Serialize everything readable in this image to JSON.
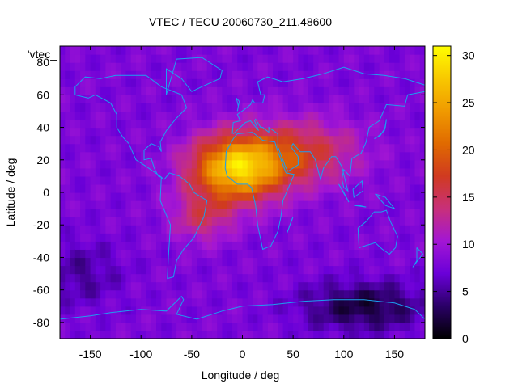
{
  "chart_data": {
    "type": "heatmap",
    "title": "VTEC / TECU 20060730_211.48600",
    "xlabel": "Longitude / deg",
    "ylabel": "Latitude / deg",
    "xlim": [
      -180,
      180
    ],
    "ylim": [
      -90,
      90
    ],
    "x_ticks": [
      -150,
      -100,
      -50,
      0,
      50,
      100,
      150
    ],
    "y_ticks": [
      60,
      40,
      20,
      0,
      -20,
      -40,
      -60,
      -80
    ],
    "y_ticks_note": "top tick '80' overprinted by key text",
    "y_top_tick_label": "80",
    "colorbar": {
      "range": [
        0,
        31
      ],
      "ticks": [
        0,
        5,
        10,
        15,
        20,
        25,
        30
      ],
      "colormap": [
        "#000000",
        "#2a0066",
        "#6a00d8",
        "#a316d4",
        "#c8307a",
        "#d03a20",
        "#e06a00",
        "#f09a00",
        "#f8c800",
        "#ffff00"
      ]
    },
    "legend_key": "'vtec_",
    "overlay": "continent coastlines (cyan)",
    "coastline_color": "#1c9ff0",
    "peak": {
      "lon": -5,
      "lat": 15,
      "value": 30
    },
    "background_value": 8,
    "field_components": [
      {
        "lon": -5,
        "lat": 15,
        "sigma_lon": 45,
        "sigma_lat": 20,
        "amp": 20
      },
      {
        "lon": 60,
        "lat": 25,
        "sigma_lon": 55,
        "sigma_lat": 20,
        "amp": 8
      },
      {
        "lon": -40,
        "lat": -15,
        "sigma_lon": 30,
        "sigma_lat": 15,
        "amp": 6
      },
      {
        "lon": 120,
        "lat": -70,
        "sigma_lon": 60,
        "sigma_lat": 15,
        "amp": -6
      },
      {
        "lon": -160,
        "lat": -50,
        "sigma_lon": 40,
        "sigma_lat": 20,
        "amp": -3
      }
    ]
  }
}
